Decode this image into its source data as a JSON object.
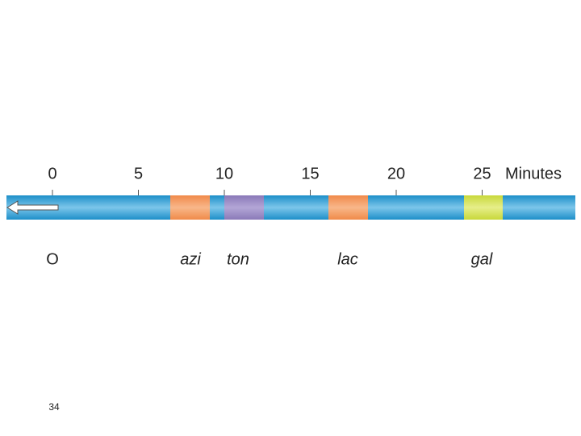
{
  "axis": {
    "ticks": [
      0,
      5,
      10,
      15,
      20,
      25
    ],
    "unit": "Minutes"
  },
  "origin": "O",
  "genes": [
    "azi",
    "ton",
    "lac",
    "gal"
  ],
  "page_number": "34"
}
